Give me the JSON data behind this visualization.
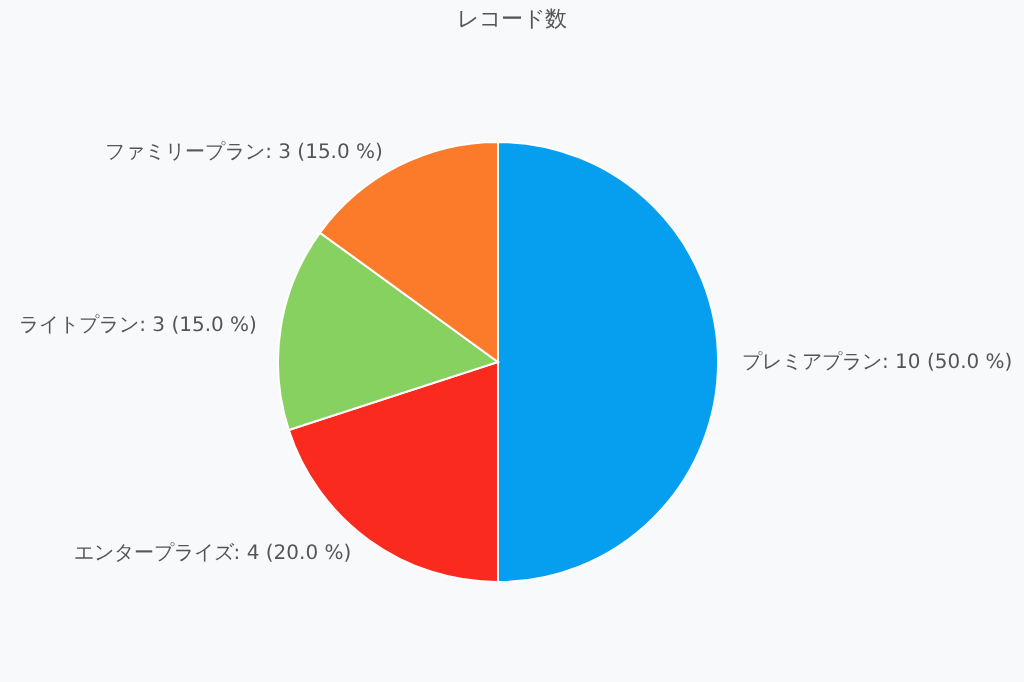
{
  "chart_data": {
    "type": "pie",
    "title": "レコード数",
    "categories": [
      "プレミアプラン",
      "エンタープライズ",
      "ライトプラン",
      "ファミリープラン"
    ],
    "values": [
      10,
      4,
      3,
      3
    ],
    "value_labels": [
      "10 (50.0 %)",
      "4 (20.0 %)",
      "3 (15.0 %)",
      "3 (15.0 %)"
    ],
    "colors": [
      "#069ff0",
      "#fa2a1e",
      "#87d160",
      "#fb7b2a"
    ],
    "legend": false
  }
}
